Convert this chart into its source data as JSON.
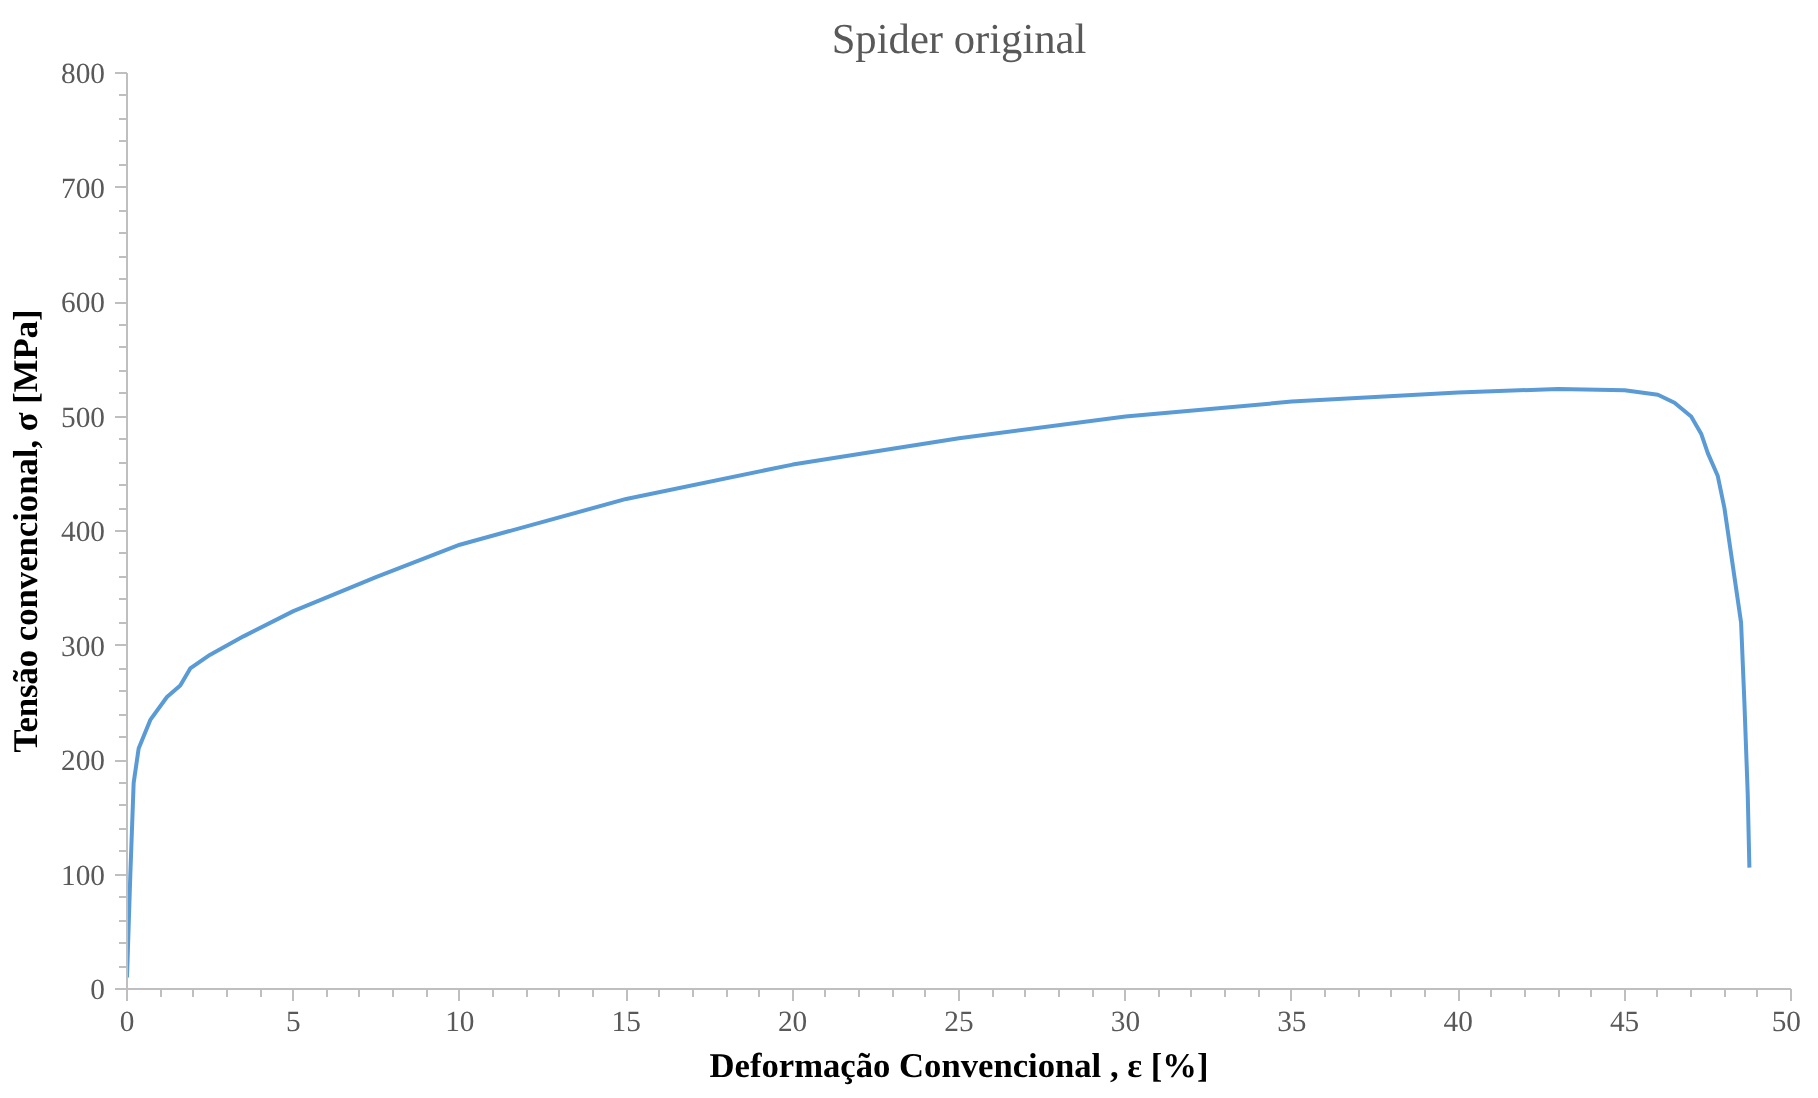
{
  "chart_data": {
    "type": "line",
    "title": "Spider original",
    "xlabel": "Deformação Convencional , ε [%]",
    "ylabel": "Tensão convencional, σ [MPa]",
    "xlim": [
      0,
      50
    ],
    "xticks": [
      0,
      5,
      10,
      15,
      20,
      25,
      30,
      35,
      40,
      45,
      50
    ],
    "ylim": [
      0,
      800
    ],
    "yticks": [
      0,
      100,
      200,
      300,
      400,
      500,
      600,
      700,
      800
    ],
    "grid": false,
    "marker": "none",
    "line_style": "solid",
    "series": [
      {
        "color": "#5b9bd5",
        "x": [
          0,
          0.1,
          0.2,
          0.35,
          0.7,
          1.2,
          1.6,
          1.9,
          2.5,
          3.5,
          5,
          7.5,
          10,
          15,
          20,
          25,
          30,
          35,
          40,
          43,
          45,
          46,
          46.5,
          47,
          47.3,
          47.5,
          47.8,
          48,
          48.2,
          48.5,
          48.6,
          48.7,
          48.75
        ],
        "values": [
          10,
          100,
          180,
          210,
          235,
          255,
          265,
          280,
          292,
          308,
          330,
          360,
          388,
          428,
          458,
          481,
          500,
          513,
          521,
          524,
          523,
          519,
          512,
          500,
          485,
          468,
          448,
          420,
          380,
          320,
          250,
          170,
          106
        ]
      }
    ]
  }
}
